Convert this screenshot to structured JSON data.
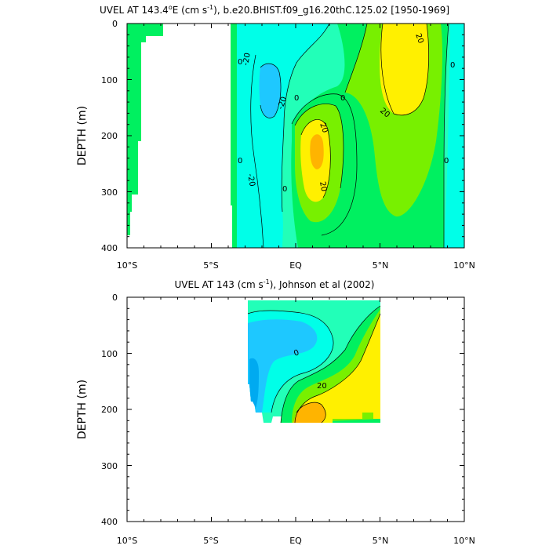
{
  "chart_data": [
    {
      "type": "heatmap",
      "title_parts": {
        "pre": "UVEL AT 143.4",
        "sup1": "o",
        "mid": "E (cm s",
        "sup2": "-1",
        "post": "), b.e20.BHIST.f09_g16.20thC.125.02 [1950-1969]"
      },
      "ylabel": "DEPTH (m)",
      "xlim": [
        -10,
        10
      ],
      "ylim": [
        400,
        0
      ],
      "y_ticks": [
        "0",
        "100",
        "200",
        "300",
        "400"
      ],
      "x_ticks": [
        "10°S",
        "5°S",
        "EQ",
        "5°N",
        "10°N"
      ],
      "contour_labels": [
        "-20",
        "-20",
        "-20",
        "0",
        "0",
        "0",
        "0",
        "20",
        "20",
        "20",
        "20",
        "0",
        "0",
        "0"
      ],
      "levels_cm_s": [
        -40,
        -20,
        0,
        20,
        40
      ],
      "colors": {
        "blue": "#1ec8ff",
        "cyan": "#00ffe8",
        "aqua": "#22ffb8",
        "green": "#00f060",
        "lightgreen": "#78f000",
        "yellow": "#fff000",
        "orange": "#ffb400",
        "land": "#ffffff"
      }
    },
    {
      "type": "heatmap",
      "title_parts": {
        "pre": "UVEL AT 143 (cm s",
        "sup": "-1",
        "post": "), Johnson et al (2002)"
      },
      "ylabel": "DEPTH (m)",
      "xlim": [
        -10,
        10
      ],
      "ylim": [
        400,
        0
      ],
      "y_ticks": [
        "0",
        "100",
        "200",
        "300",
        "400"
      ],
      "x_ticks": [
        "10°S",
        "5°S",
        "EQ",
        "5°N",
        "10°N"
      ],
      "contour_labels": [
        "0",
        "20"
      ],
      "data_extent": {
        "lat": [
          -2.9,
          5.0
        ],
        "depth": [
          10,
          225
        ]
      }
    }
  ]
}
